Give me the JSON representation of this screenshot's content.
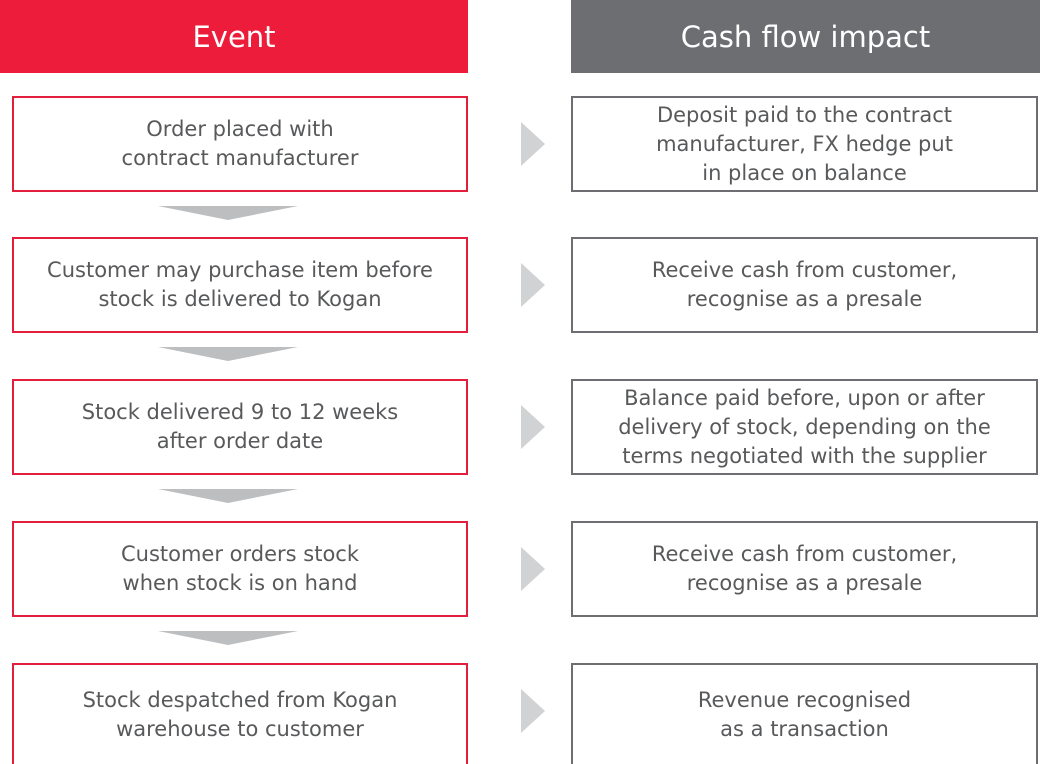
{
  "header": {
    "left": "Event",
    "right": "Cash flow impact"
  },
  "rows": [
    {
      "event": [
        "Order placed with",
        "contract manufacturer"
      ],
      "impact": [
        "Deposit paid to the contract",
        "manufacturer, FX hedge put",
        "in place on balance"
      ]
    },
    {
      "event": [
        "Customer may purchase item before",
        "stock is delivered to Kogan"
      ],
      "impact": [
        "Receive cash from customer,",
        "recognise as a presale"
      ]
    },
    {
      "event": [
        "Stock delivered 9 to 12 weeks",
        "after order date"
      ],
      "impact": [
        "Balance paid before, upon or after",
        "delivery of stock, depending on the",
        "terms negotiated with the supplier"
      ]
    },
    {
      "event": [
        "Customer orders stock",
        "when stock is on hand"
      ],
      "impact": [
        "Receive cash from customer,",
        "recognise as a presale"
      ]
    },
    {
      "event": [
        "Stock despatched from Kogan",
        "warehouse to customer"
      ],
      "impact": [
        "Revenue recognised",
        "as a transaction"
      ]
    }
  ]
}
